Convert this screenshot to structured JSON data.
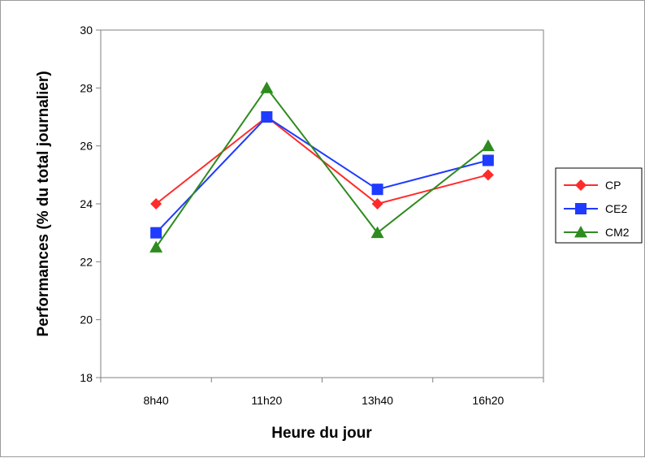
{
  "chart_data": {
    "type": "line",
    "title": "",
    "xlabel": "Heure du jour",
    "ylabel": "Performances (% du total journalier)",
    "categories": [
      "8h40",
      "11h20",
      "13h40",
      "16h20"
    ],
    "ylim": [
      18,
      30
    ],
    "yticks": [
      18,
      20,
      22,
      24,
      26,
      28,
      30
    ],
    "grid": false,
    "legend_position": "right",
    "series": [
      {
        "name": "CP",
        "values": [
          24,
          27,
          24,
          25
        ],
        "color": "#ff2b2b",
        "marker": "diamond"
      },
      {
        "name": "CE2",
        "values": [
          23,
          27,
          24.5,
          25.5
        ],
        "color": "#1f3bff",
        "marker": "square"
      },
      {
        "name": "CM2",
        "values": [
          22.5,
          28,
          23,
          26
        ],
        "color": "#2e8b1f",
        "marker": "triangle"
      }
    ]
  }
}
